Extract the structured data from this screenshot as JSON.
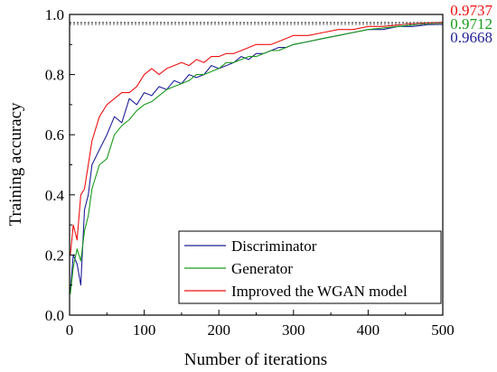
{
  "chart_data": {
    "type": "line",
    "title": "",
    "xlabel": "Number of iterations",
    "ylabel": "Training accuracy",
    "xlim": [
      0,
      500
    ],
    "ylim": [
      0.0,
      1.0
    ],
    "xticks": [
      0,
      100,
      200,
      300,
      400,
      500
    ],
    "yticks": [
      0.0,
      0.2,
      0.4,
      0.6,
      0.8,
      1.0
    ],
    "grid": false,
    "legend_position": "bottom-right",
    "x": [
      1,
      5,
      10,
      15,
      20,
      25,
      30,
      40,
      50,
      60,
      70,
      80,
      90,
      100,
      110,
      120,
      130,
      140,
      150,
      160,
      170,
      180,
      190,
      200,
      210,
      220,
      230,
      240,
      250,
      260,
      270,
      280,
      290,
      300,
      320,
      340,
      360,
      380,
      400,
      420,
      440,
      460,
      480,
      500
    ],
    "series": [
      {
        "name": "Discriminator",
        "color": "#1f1f99",
        "final_label": "0.9668",
        "values": [
          0.08,
          0.2,
          0.17,
          0.1,
          0.35,
          0.4,
          0.5,
          0.55,
          0.6,
          0.66,
          0.64,
          0.72,
          0.7,
          0.74,
          0.73,
          0.76,
          0.75,
          0.78,
          0.77,
          0.8,
          0.79,
          0.8,
          0.83,
          0.82,
          0.83,
          0.84,
          0.86,
          0.85,
          0.87,
          0.87,
          0.88,
          0.89,
          0.89,
          0.9,
          0.91,
          0.92,
          0.93,
          0.94,
          0.95,
          0.95,
          0.96,
          0.96,
          0.966,
          0.9668
        ]
      },
      {
        "name": "Generator",
        "color": "#1a9a1a",
        "final_label": "0.9712",
        "values": [
          0.07,
          0.16,
          0.22,
          0.18,
          0.28,
          0.33,
          0.42,
          0.5,
          0.52,
          0.6,
          0.63,
          0.65,
          0.68,
          0.7,
          0.71,
          0.73,
          0.75,
          0.76,
          0.77,
          0.78,
          0.8,
          0.8,
          0.81,
          0.82,
          0.84,
          0.84,
          0.85,
          0.86,
          0.86,
          0.87,
          0.88,
          0.88,
          0.89,
          0.9,
          0.91,
          0.92,
          0.93,
          0.94,
          0.95,
          0.955,
          0.96,
          0.965,
          0.97,
          0.9712
        ]
      },
      {
        "name": "Improved the WGAN model",
        "color": "#ee1111",
        "final_label": "0.9737",
        "values": [
          0.2,
          0.3,
          0.25,
          0.4,
          0.42,
          0.5,
          0.58,
          0.66,
          0.7,
          0.72,
          0.74,
          0.74,
          0.76,
          0.8,
          0.82,
          0.8,
          0.82,
          0.83,
          0.84,
          0.83,
          0.85,
          0.84,
          0.86,
          0.86,
          0.87,
          0.87,
          0.88,
          0.89,
          0.9,
          0.9,
          0.9,
          0.91,
          0.92,
          0.93,
          0.93,
          0.94,
          0.95,
          0.95,
          0.96,
          0.96,
          0.965,
          0.97,
          0.972,
          0.9737
        ]
      }
    ]
  }
}
